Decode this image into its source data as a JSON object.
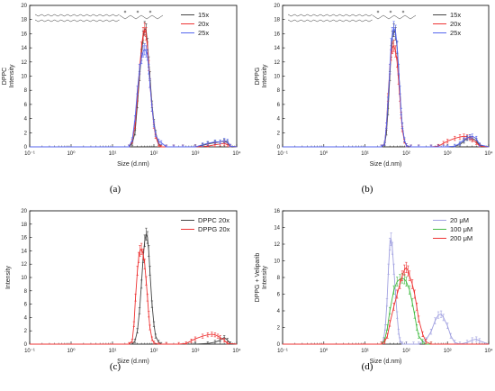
{
  "figure_panel_labels": [
    "(a)",
    "(b)",
    "(c)",
    "(d)"
  ],
  "chart_data": [
    {
      "type": "line",
      "panel": "(a)",
      "has_molecule_structure": true,
      "ylabel": "DPPC\nIntensity",
      "xlabel": "Size (d.nm)",
      "xscale": "log",
      "xlim": [
        0.1,
        10000
      ],
      "ylim": [
        0,
        20
      ],
      "yticks": [
        0,
        2,
        4,
        6,
        8,
        10,
        12,
        14,
        16,
        18,
        20
      ],
      "legend_position": "top-right",
      "series": [
        {
          "name": "15x",
          "color": "#444444",
          "x": [
            0.1,
            25,
            30,
            35,
            40,
            45,
            50,
            55,
            60,
            65,
            70,
            75,
            80,
            90,
            100,
            110,
            130,
            150,
            200,
            300,
            500,
            1000,
            1500,
            2000,
            3000,
            4000,
            5000,
            6000,
            7000,
            10000
          ],
          "y": [
            0,
            0,
            0.5,
            2,
            6,
            10,
            13,
            15.5,
            16.8,
            16.5,
            14.5,
            12,
            10,
            6,
            3.5,
            2,
            0.5,
            0,
            0,
            0,
            0,
            0,
            0.2,
            0.4,
            0.6,
            0.7,
            0.8,
            0.6,
            0.1,
            0
          ]
        },
        {
          "name": "20x",
          "color": "#ee3333",
          "x": [
            0.1,
            25,
            30,
            35,
            40,
            45,
            50,
            55,
            60,
            65,
            70,
            75,
            80,
            90,
            100,
            110,
            130,
            150,
            200,
            300,
            500,
            1000,
            2000,
            3000,
            4000,
            5000,
            6000,
            7000,
            10000
          ],
          "y": [
            0,
            0,
            0.8,
            3,
            7,
            11,
            14,
            16,
            16.6,
            16,
            14,
            11.5,
            9,
            5.5,
            3,
            1.5,
            0.3,
            0,
            0,
            0,
            0,
            0,
            0.1,
            0.3,
            0.4,
            0.5,
            0.3,
            0.1,
            0
          ]
        },
        {
          "name": "25x",
          "color": "#5566ee",
          "x": [
            0.1,
            25,
            30,
            35,
            40,
            45,
            50,
            55,
            60,
            65,
            70,
            75,
            80,
            90,
            100,
            110,
            130,
            150,
            200,
            300,
            500,
            1000,
            1500,
            2000,
            3000,
            4000,
            5000,
            6000,
            7000,
            10000
          ],
          "y": [
            0,
            0,
            1,
            4,
            8,
            11,
            12.5,
            13.5,
            13.8,
            13.5,
            13,
            11,
            9,
            5.5,
            3.2,
            1.8,
            0.8,
            0.6,
            0,
            0,
            0,
            0,
            0.3,
            0.5,
            0.7,
            0.7,
            0.9,
            0.8,
            0.1,
            0
          ]
        }
      ]
    },
    {
      "type": "line",
      "panel": "(b)",
      "has_molecule_structure": true,
      "ylabel": "DPPG\nIntensity",
      "xlabel": "Size (d.nm)",
      "xscale": "log",
      "xlim": [
        0.1,
        10000
      ],
      "ylim": [
        0,
        20
      ],
      "yticks": [
        0,
        2,
        4,
        6,
        8,
        10,
        12,
        14,
        16,
        18,
        20
      ],
      "legend_position": "top-right",
      "series": [
        {
          "name": "15x",
          "color": "#444444",
          "x": [
            0.1,
            25,
            30,
            33,
            36,
            40,
            43,
            46,
            50,
            55,
            60,
            65,
            70,
            75,
            80,
            90,
            100,
            130,
            200,
            400,
            600,
            800,
            1000,
            1500,
            2000,
            2500,
            3000,
            3500,
            4000,
            5000,
            6000,
            10000
          ],
          "y": [
            0,
            0,
            0.3,
            2,
            5,
            10,
            13.5,
            15.5,
            16.5,
            16,
            14,
            11,
            8,
            5,
            3,
            1,
            0.2,
            0,
            0,
            0,
            0,
            0,
            0,
            0.1,
            0.3,
            0.8,
            1.2,
            1.4,
            1.2,
            0.9,
            0.2,
            0
          ]
        },
        {
          "name": "20x",
          "color": "#ee3333",
          "x": [
            0.1,
            25,
            30,
            33,
            36,
            40,
            43,
            46,
            50,
            55,
            60,
            65,
            70,
            75,
            80,
            90,
            100,
            130,
            200,
            400,
            600,
            800,
            1000,
            1500,
            2000,
            2500,
            3000,
            3500,
            4000,
            5000,
            6000,
            10000
          ],
          "y": [
            0,
            0,
            0.5,
            3,
            7,
            11,
            13,
            14,
            14.3,
            13.5,
            12,
            9.5,
            7,
            4.5,
            2.5,
            0.8,
            0.2,
            0,
            0,
            0,
            0.1,
            0.5,
            0.8,
            1.2,
            1.4,
            1.5,
            1.4,
            1.2,
            1,
            0.6,
            0.1,
            0
          ]
        },
        {
          "name": "25x",
          "color": "#5566ee",
          "x": [
            0.1,
            25,
            30,
            33,
            36,
            40,
            43,
            46,
            50,
            55,
            60,
            65,
            70,
            75,
            80,
            90,
            100,
            130,
            200,
            400,
            600,
            800,
            1000,
            1500,
            2000,
            2500,
            3000,
            3500,
            4000,
            5000,
            6000,
            10000
          ],
          "y": [
            0,
            0,
            0.5,
            3,
            6.5,
            11,
            14.5,
            16,
            16.8,
            16.3,
            14.2,
            11,
            8,
            5,
            3,
            1,
            0.2,
            0,
            0,
            0,
            0,
            0,
            0,
            0.1,
            0.5,
            1,
            1.3,
            1.4,
            1.5,
            1.2,
            0.3,
            0
          ]
        }
      ]
    },
    {
      "type": "line",
      "panel": "(c)",
      "has_molecule_structure": false,
      "ylabel": "Intensity",
      "xlabel": "Size (d.nm)",
      "xscale": "log",
      "xlim": [
        0.1,
        10000
      ],
      "ylim": [
        0,
        20
      ],
      "yticks": [
        0,
        2,
        4,
        6,
        8,
        10,
        12,
        14,
        16,
        18,
        20
      ],
      "legend_position": "top-right",
      "series": [
        {
          "name": "DPPC 20x",
          "color": "#444444",
          "x": [
            0.1,
            30,
            35,
            40,
            45,
            50,
            55,
            60,
            65,
            70,
            75,
            80,
            90,
            100,
            110,
            130,
            150,
            200,
            1000,
            2000,
            3000,
            4000,
            5000,
            6000,
            7000,
            10000
          ],
          "y": [
            0,
            0,
            0.5,
            2,
            5,
            9,
            13,
            15.5,
            16.5,
            16,
            14,
            11,
            6,
            3,
            1.2,
            0.3,
            0,
            0,
            0,
            0.1,
            0.3,
            0.6,
            1,
            0.6,
            0.1,
            0
          ]
        },
        {
          "name": "DPPG 20x",
          "color": "#ee3333",
          "x": [
            0.1,
            25,
            30,
            33,
            36,
            40,
            43,
            46,
            50,
            55,
            60,
            65,
            70,
            75,
            80,
            90,
            100,
            130,
            200,
            400,
            600,
            800,
            1000,
            1500,
            2000,
            2500,
            3000,
            3500,
            4000,
            5000,
            6000,
            10000
          ],
          "y": [
            0,
            0,
            0.5,
            3,
            7,
            11,
            13,
            14,
            14.3,
            13.5,
            12,
            9.5,
            7,
            4.5,
            2.5,
            0.8,
            0.2,
            0,
            0,
            0,
            0.1,
            0.5,
            0.8,
            1.2,
            1.4,
            1.5,
            1.4,
            1.2,
            1,
            0.6,
            0.1,
            0
          ]
        }
      ]
    },
    {
      "type": "line",
      "panel": "(d)",
      "has_molecule_structure": false,
      "ylabel": "DPPG + Veliparib\nIntensity",
      "xlabel": "Size (d.nm)",
      "xscale": "log",
      "xlim": [
        0.1,
        10000
      ],
      "ylim": [
        0,
        16
      ],
      "yticks": [
        0,
        2,
        4,
        6,
        8,
        10,
        12,
        14,
        16
      ],
      "legend_position": "top-right",
      "series": [
        {
          "name": "20 μM",
          "color": "#a0a0e0",
          "x": [
            0.1,
            25,
            28,
            31,
            34,
            37,
            40,
            43,
            46,
            50,
            55,
            60,
            65,
            70,
            80,
            100,
            150,
            200,
            300,
            400,
            500,
            600,
            700,
            800,
            1000,
            1200,
            1500,
            2000,
            3000,
            4000,
            5000,
            6000,
            10000
          ],
          "y": [
            0,
            0,
            0.5,
            2,
            5,
            9,
            12,
            12.6,
            11.5,
            9,
            6,
            3.5,
            1.5,
            0.5,
            0,
            0,
            0,
            0,
            0.5,
            1.5,
            2.8,
            3.5,
            3.6,
            3.2,
            2.2,
            1,
            0.2,
            0,
            0.2,
            0.5,
            0.6,
            0.4,
            0
          ]
        },
        {
          "name": "100 μM",
          "color": "#44bb44",
          "x": [
            0.1,
            25,
            30,
            35,
            40,
            50,
            60,
            70,
            80,
            90,
            100,
            120,
            140,
            160,
            180,
            200,
            250,
            300,
            400,
            10000
          ],
          "y": [
            0,
            0,
            0.5,
            2,
            4,
            6.5,
            7.5,
            7.8,
            7.9,
            7.8,
            7.5,
            6.5,
            5,
            3.5,
            2,
            1,
            0.3,
            0,
            0,
            0
          ]
        },
        {
          "name": "200 μM",
          "color": "#ee3333",
          "x": [
            0.1,
            25,
            30,
            35,
            40,
            50,
            60,
            70,
            80,
            90,
            100,
            110,
            120,
            140,
            160,
            180,
            200,
            250,
            300,
            400,
            10000
          ],
          "y": [
            0,
            0,
            0.3,
            1,
            2.5,
            4.5,
            6,
            7.2,
            8.2,
            8.9,
            9.2,
            8.8,
            8.2,
            7.2,
            6,
            4.5,
            3,
            1.2,
            0.3,
            0,
            0
          ]
        }
      ]
    }
  ]
}
